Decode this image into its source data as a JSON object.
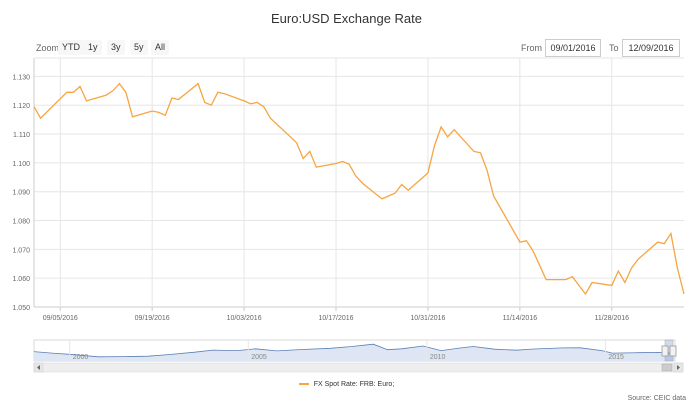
{
  "title": "Euro:USD Exchange Rate",
  "zoom": {
    "label": "Zoom",
    "buttons": [
      "YTD",
      "1y",
      "3y",
      "5y",
      "All"
    ]
  },
  "range": {
    "from_label": "From",
    "from_value": "09/01/2016",
    "to_label": "To",
    "to_value": "12/09/2016"
  },
  "legend": {
    "label": "FX Spot Rate: FRB: Euro;"
  },
  "source": "Source: CEIC data",
  "colors": {
    "series": "#f7a541",
    "navigator_line": "#5b7fb5",
    "navigator_fill": "#dde6f2"
  },
  "navigator": {
    "x_labels": [
      "2000",
      "2005",
      "2010",
      "2015"
    ],
    "x_label_years": [
      2000,
      2005,
      2010,
      2015
    ],
    "range_years": [
      1999,
      2016.95
    ]
  },
  "chart_data": {
    "type": "line",
    "title": "Euro:USD Exchange Rate",
    "xlabel": "",
    "ylabel": "",
    "ylim": [
      1.05,
      1.135
    ],
    "yticks": [
      1.05,
      1.06,
      1.07,
      1.08,
      1.09,
      1.1,
      1.11,
      1.12,
      1.13
    ],
    "ytick_labels": [
      "1.050",
      "1.060",
      "1.070",
      "1.080",
      "1.090",
      "1.100",
      "1.110",
      "1.120",
      "1.130"
    ],
    "xrange": [
      "2016-09-01",
      "2016-12-09"
    ],
    "xtick_dates": [
      "2016-09-05",
      "2016-09-19",
      "2016-10-03",
      "2016-10-17",
      "2016-10-31",
      "2016-11-14",
      "2016-11-28"
    ],
    "xtick_labels": [
      "09/05/2016",
      "09/19/2016",
      "10/03/2016",
      "10/17/2016",
      "10/31/2016",
      "11/14/2016",
      "11/28/2016"
    ],
    "grid": true,
    "legend_position": "bottom-center",
    "series": [
      {
        "name": "FX Spot Rate: FRB: Euro;",
        "points": [
          [
            "2016-09-01",
            1.1195
          ],
          [
            "2016-09-02",
            1.1155
          ],
          [
            "2016-09-06",
            1.1245
          ],
          [
            "2016-09-07",
            1.1245
          ],
          [
            "2016-09-08",
            1.1265
          ],
          [
            "2016-09-09",
            1.1215
          ],
          [
            "2016-09-12",
            1.1235
          ],
          [
            "2016-09-13",
            1.125
          ],
          [
            "2016-09-14",
            1.1275
          ],
          [
            "2016-09-15",
            1.1245
          ],
          [
            "2016-09-16",
            1.116
          ],
          [
            "2016-09-19",
            1.118
          ],
          [
            "2016-09-20",
            1.1175
          ],
          [
            "2016-09-21",
            1.1165
          ],
          [
            "2016-09-22",
            1.1225
          ],
          [
            "2016-09-23",
            1.122
          ],
          [
            "2016-09-26",
            1.1275
          ],
          [
            "2016-09-27",
            1.121
          ],
          [
            "2016-09-28",
            1.12
          ],
          [
            "2016-09-29",
            1.1245
          ],
          [
            "2016-09-30",
            1.124
          ],
          [
            "2016-10-03",
            1.1215
          ],
          [
            "2016-10-04",
            1.1205
          ],
          [
            "2016-10-05",
            1.121
          ],
          [
            "2016-10-06",
            1.1195
          ],
          [
            "2016-10-07",
            1.1155
          ],
          [
            "2016-10-11",
            1.107
          ],
          [
            "2016-10-12",
            1.1015
          ],
          [
            "2016-10-13",
            1.104
          ],
          [
            "2016-10-14",
            1.0985
          ],
          [
            "2016-10-17",
            1.0998
          ],
          [
            "2016-10-18",
            1.1005
          ],
          [
            "2016-10-19",
            1.0995
          ],
          [
            "2016-10-20",
            1.0955
          ],
          [
            "2016-10-21",
            1.093
          ],
          [
            "2016-10-24",
            1.0875
          ],
          [
            "2016-10-25",
            1.0885
          ],
          [
            "2016-10-26",
            1.0895
          ],
          [
            "2016-10-27",
            1.0925
          ],
          [
            "2016-10-28",
            1.0905
          ],
          [
            "2016-10-31",
            1.0965
          ],
          [
            "2016-11-01",
            1.106
          ],
          [
            "2016-11-02",
            1.1125
          ],
          [
            "2016-11-03",
            1.109
          ],
          [
            "2016-11-04",
            1.1115
          ],
          [
            "2016-11-07",
            1.104
          ],
          [
            "2016-11-08",
            1.1035
          ],
          [
            "2016-11-09",
            1.0975
          ],
          [
            "2016-11-10",
            1.0885
          ],
          [
            "2016-11-14",
            1.0725
          ],
          [
            "2016-11-15",
            1.073
          ],
          [
            "2016-11-16",
            1.0695
          ],
          [
            "2016-11-17",
            1.0645
          ],
          [
            "2016-11-18",
            1.0595
          ],
          [
            "2016-11-21",
            1.0595
          ],
          [
            "2016-11-22",
            1.0605
          ],
          [
            "2016-11-23",
            1.0575
          ],
          [
            "2016-11-24",
            1.0545
          ],
          [
            "2016-11-25",
            1.0585
          ],
          [
            "2016-11-28",
            1.0575
          ],
          [
            "2016-11-29",
            1.0625
          ],
          [
            "2016-11-30",
            1.0585
          ],
          [
            "2016-12-01",
            1.0635
          ],
          [
            "2016-12-02",
            1.0665
          ],
          [
            "2016-12-05",
            1.0725
          ],
          [
            "2016-12-06",
            1.072
          ],
          [
            "2016-12-07",
            1.0755
          ],
          [
            "2016-12-08",
            1.0635
          ],
          [
            "2016-12-09",
            1.0545
          ]
        ]
      }
    ]
  }
}
